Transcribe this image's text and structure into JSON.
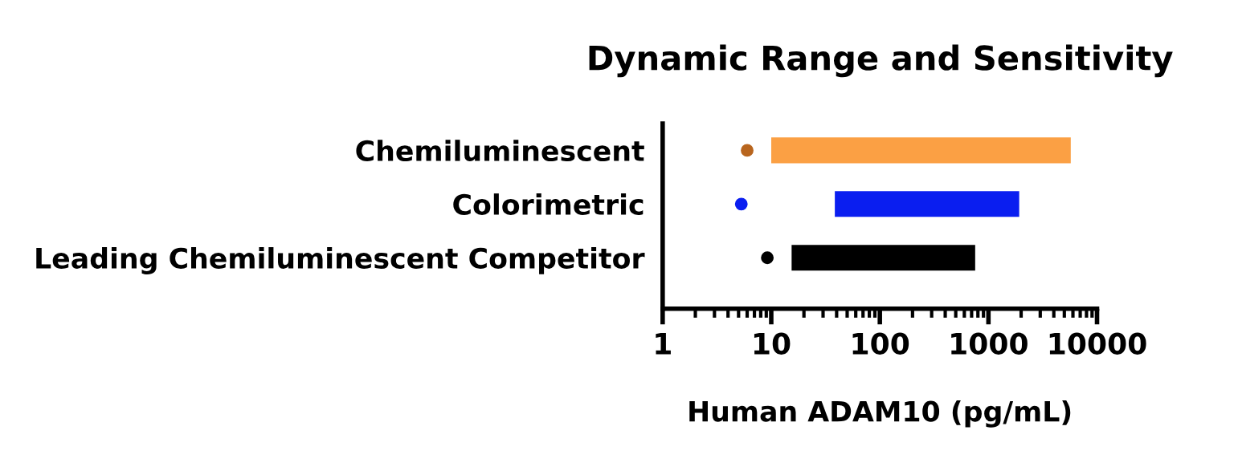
{
  "chart_data": {
    "type": "bar",
    "orientation": "horizontal",
    "title": "Dynamic Range and Sensitivity",
    "xlabel": "Human ADAM10 (pg/mL)",
    "categories": [
      "Chemiluminescent",
      "Colorimetric",
      "Leading Chemiluminescent Competitor"
    ],
    "series": [
      {
        "colors": [
          "#fba044",
          "#0a1ef0",
          "#000000"
        ],
        "base": [
          10,
          38.5,
          15.4
        ],
        "values": [
          5720,
          1881.5,
          739.6
        ]
      },
      {
        "type": "scatter",
        "colors": [
          "#b8651e",
          "#0a1ef0",
          "#000000"
        ],
        "values": [
          6,
          5.3,
          9.2
        ]
      }
    ],
    "log": "x",
    "xlim": [
      1,
      10000
    ],
    "xticks": [
      1,
      10,
      100,
      1000,
      10000
    ],
    "grid": false,
    "marker": "circle"
  }
}
